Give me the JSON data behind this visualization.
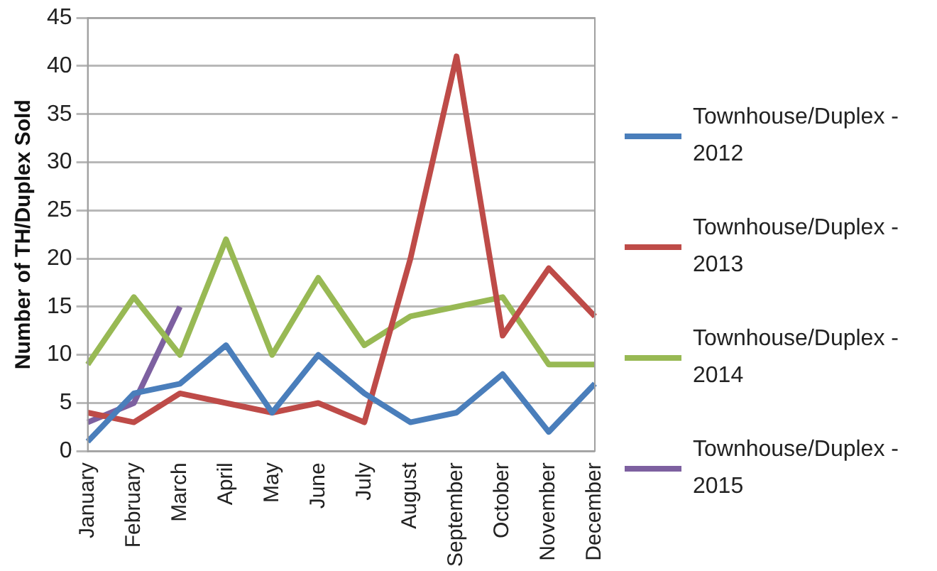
{
  "chart_data": {
    "type": "line",
    "ylabel": "Number of TH/Duplex Sold",
    "categories": [
      "January",
      "February",
      "March",
      "April",
      "May",
      "June",
      "July",
      "August",
      "September",
      "October",
      "November",
      "December"
    ],
    "series": [
      {
        "name": "Townhouse/Duplex - 2012",
        "color": "#4a7ebb",
        "values": [
          1,
          6,
          7,
          11,
          4,
          10,
          6,
          3,
          4,
          8,
          2,
          7
        ]
      },
      {
        "name": "Townhouse/Duplex - 2013",
        "color": "#be4b48",
        "values": [
          4,
          3,
          6,
          5,
          4,
          5,
          3,
          20,
          41,
          12,
          19,
          14
        ]
      },
      {
        "name": "Townhouse/Duplex - 2014",
        "color": "#98b954",
        "values": [
          9,
          16,
          10,
          22,
          10,
          18,
          11,
          14,
          15,
          16,
          9,
          9
        ]
      },
      {
        "name": "Townhouse/Duplex - 2015",
        "color": "#7d60a0",
        "values": [
          3,
          5,
          15,
          null,
          null,
          null,
          null,
          null,
          null,
          null,
          null,
          null
        ]
      }
    ],
    "ylim": [
      0,
      45
    ],
    "yticks": [
      0,
      5,
      10,
      15,
      20,
      25,
      30,
      35,
      40,
      45
    ],
    "grid": "y",
    "legend": "right",
    "marker": "none",
    "line_style": "solid"
  }
}
